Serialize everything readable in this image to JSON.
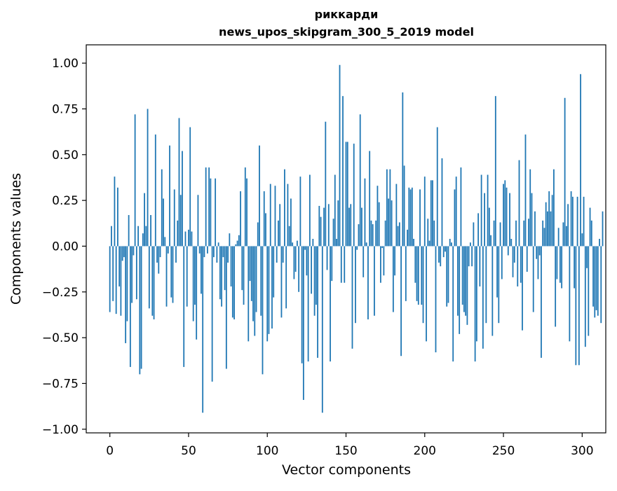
{
  "chart_data": {
    "type": "bar",
    "title_line1": "риккарди",
    "title_line2": "news_upos_skipgram_300_5_2019 model",
    "xlabel": "Vector components",
    "ylabel": "Components values",
    "xlim": [
      -15,
      315
    ],
    "ylim": [
      -1.02,
      1.1
    ],
    "x_ticks": [
      0,
      50,
      100,
      150,
      200,
      250,
      300
    ],
    "x_tick_labels": [
      "0",
      "50",
      "100",
      "150",
      "200",
      "250",
      "300"
    ],
    "y_ticks": [
      -1.0,
      -0.75,
      -0.5,
      -0.25,
      0.0,
      0.25,
      0.5,
      0.75,
      1.0
    ],
    "y_tick_labels": [
      "−1.00",
      "−0.75",
      "−0.50",
      "−0.25",
      "0.00",
      "0.25",
      "0.50",
      "0.75",
      "1.00"
    ],
    "bar_color": "#1f77b4",
    "values": [
      -0.36,
      0.11,
      -0.3,
      0.38,
      -0.37,
      0.32,
      -0.22,
      -0.38,
      -0.08,
      -0.06,
      -0.53,
      -0.41,
      0.17,
      -0.66,
      -0.31,
      -0.05,
      0.72,
      -0.29,
      0.11,
      -0.7,
      -0.67,
      0.07,
      0.29,
      0.11,
      0.75,
      -0.34,
      0.17,
      -0.38,
      -0.4,
      0.61,
      -0.09,
      -0.15,
      -0.06,
      0.42,
      0.26,
      0.05,
      -0.33,
      -0.04,
      0.55,
      -0.28,
      -0.31,
      0.31,
      -0.09,
      0.14,
      0.7,
      0.28,
      0.52,
      -0.66,
      0.08,
      -0.33,
      0.09,
      0.65,
      0.08,
      -0.41,
      -0.32,
      -0.51,
      0.28,
      -0.04,
      -0.26,
      -0.91,
      -0.06,
      0.43,
      -0.04,
      0.43,
      0.37,
      -0.74,
      -0.06,
      0.37,
      -0.09,
      0.02,
      -0.29,
      -0.33,
      -0.06,
      -0.24,
      -0.67,
      -0.09,
      0.07,
      -0.22,
      -0.39,
      -0.4,
      0.01,
      0.03,
      0.06,
      0.3,
      -0.24,
      -0.32,
      0.43,
      0.37,
      -0.52,
      -0.19,
      -0.3,
      -0.41,
      -0.49,
      -0.36,
      0.13,
      0.55,
      -0.38,
      -0.7,
      0.3,
      0.18,
      -0.52,
      -0.48,
      0.34,
      -0.45,
      -0.28,
      0.33,
      -0.09,
      0.14,
      0.23,
      -0.39,
      -0.09,
      0.42,
      -0.34,
      0.34,
      0.11,
      0.26,
      0.02,
      -0.18,
      -0.14,
      0.03,
      -0.25,
      0.38,
      -0.64,
      -0.84,
      -0.02,
      -0.16,
      -0.63,
      0.39,
      -0.26,
      0.04,
      -0.38,
      -0.32,
      -0.61,
      0.22,
      0.16,
      -0.91,
      0.21,
      0.68,
      -0.13,
      0.23,
      -0.63,
      -0.19,
      0.15,
      0.39,
      0.04,
      0.25,
      0.99,
      -0.2,
      0.82,
      -0.2,
      0.57,
      0.57,
      0.21,
      0.23,
      -0.56,
      0.56,
      -0.42,
      -0.02,
      0.12,
      0.72,
      0.21,
      -0.17,
      0.37,
      0.02,
      -0.4,
      0.52,
      0.14,
      0.12,
      -0.38,
      0.14,
      0.33,
      0.24,
      -0.2,
      -0.01,
      -0.16,
      0.14,
      0.42,
      0.26,
      0.42,
      0.25,
      -0.36,
      -0.16,
      0.34,
      0.11,
      0.13,
      -0.6,
      0.84,
      0.44,
      -0.3,
      0.09,
      0.32,
      0.31,
      0.32,
      0.04,
      -0.2,
      -0.3,
      -0.32,
      0.31,
      -0.32,
      -0.42,
      0.38,
      -0.52,
      0.15,
      0.03,
      0.36,
      0.36,
      0.14,
      -0.58,
      0.65,
      -0.09,
      -0.11,
      0.48,
      -0.06,
      -0.03,
      -0.33,
      -0.31,
      0.04,
      0.02,
      -0.63,
      0.31,
      0.38,
      -0.38,
      -0.48,
      0.43,
      -0.32,
      -0.36,
      -0.38,
      -0.43,
      -0.11,
      0.02,
      -0.11,
      0.13,
      -0.63,
      -0.52,
      0.18,
      -0.22,
      0.39,
      -0.56,
      0.29,
      -0.42,
      0.39,
      0.21,
      0.06,
      -0.49,
      0.14,
      0.82,
      -0.28,
      -0.42,
      0.13,
      -0.18,
      0.34,
      0.36,
      0.32,
      -0.05,
      0.29,
      0.04,
      -0.17,
      -0.09,
      0.14,
      -0.22,
      0.47,
      -0.2,
      -0.46,
      0.14,
      0.61,
      -0.14,
      0.15,
      0.42,
      0.29,
      -0.36,
      0.19,
      -0.07,
      -0.18,
      -0.05,
      -0.61,
      0.14,
      0.1,
      0.24,
      0.19,
      0.3,
      0.19,
      0.28,
      0.42,
      -0.44,
      -0.18,
      0.1,
      -0.2,
      -0.23,
      0.13,
      0.81,
      0.11,
      0.23,
      -0.52,
      0.3,
      0.27,
      -0.23,
      -0.65,
      0.27,
      -0.65,
      0.94,
      0.07,
      0.27,
      -0.55,
      -0.12,
      -0.49,
      0.21,
      0.14,
      -0.33,
      -0.39,
      -0.35,
      -0.38,
      0.04,
      -0.42,
      0.19
    ]
  }
}
